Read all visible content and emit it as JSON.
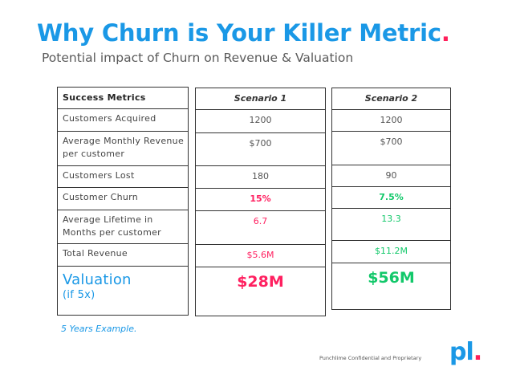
{
  "title": {
    "text": "Why Churn is Your Killer Metric",
    "dot": ".",
    "color": "#1a98e6",
    "dot_color": "#ff1f5a"
  },
  "subtitle": "Potential impact of Churn on Revenue & Valuation",
  "metrics": {
    "header": "Success Metrics",
    "rows": [
      "Customers Acquired",
      "Average Monthly Revenue per customer",
      "Customers Lost",
      "Customer Churn",
      "Average Lifetime in Months per customer",
      "Total Revenue"
    ],
    "valuation_label": "Valuation",
    "valuation_note": "(if 5x)"
  },
  "scenario1": {
    "header": "Scenario 1",
    "values": [
      "1200",
      "$700",
      "180",
      "15%",
      "6.7",
      "$5.6M"
    ],
    "valuation": "$28M",
    "color": "#ff2060"
  },
  "scenario2": {
    "header": "Scenario 2",
    "values": [
      "1200",
      "$700",
      "90",
      "7.5%",
      "13.3",
      "$11.2M"
    ],
    "valuation": "$56M",
    "color": "#12c86a"
  },
  "footnote": "5 Years Example.",
  "footer": {
    "confidential": "Punchlime Confidential and Proprietary",
    "logo_text": "pl",
    "logo_dot": "."
  }
}
